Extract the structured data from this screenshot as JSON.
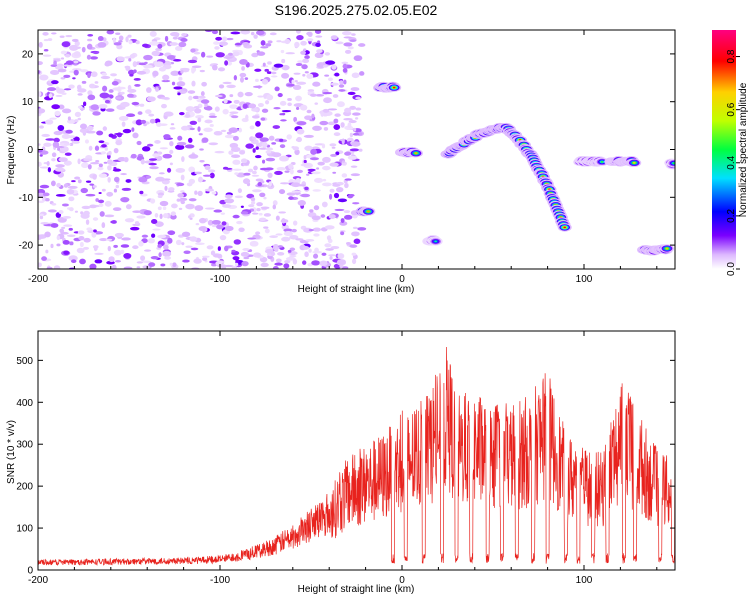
{
  "title": "S196.2025.275.02.05.E02",
  "chart_data": [
    {
      "type": "heatmap",
      "title": "",
      "xlabel": "Height of straight line (km)",
      "ylabel": "Frequency (Hz)",
      "xlim": [
        -200,
        150
      ],
      "ylim": [
        -25,
        25
      ],
      "xticks": [
        -200,
        -100,
        0,
        100
      ],
      "yticks": [
        -20,
        -10,
        0,
        10,
        20
      ],
      "xtick_labels": [
        "-200",
        "-100",
        "0",
        "100"
      ],
      "ytick_labels": [
        "-20",
        "-10",
        "0",
        "10",
        "20"
      ],
      "colorbar": {
        "label": "Normalized spectral amplitude",
        "range": [
          0,
          0.9
        ],
        "ticks": [
          0.0,
          0.2,
          0.4,
          0.6,
          0.8
        ],
        "tick_labels": [
          "0.0",
          "0.2",
          "0.4",
          "0.6",
          "0.8"
        ],
        "colormap": [
          "#ffffff",
          "#ddb8ff",
          "#7a00ff",
          "#0000ff",
          "#00e0ff",
          "#00ff40",
          "#c0ff00",
          "#ffd000",
          "#ff0000",
          "#ff0080"
        ]
      },
      "background_noise": {
        "x_range": [
          -200,
          -22
        ],
        "level": 0.12
      },
      "ridge_segments": [
        {
          "x_start": -22,
          "x_end": -18,
          "freq": -13,
          "amplitude": 0.85
        },
        {
          "x_start": -12,
          "x_end": -4,
          "freq": 13,
          "amplitude": 0.8
        },
        {
          "x_start": 0,
          "x_end": 8,
          "freq": -0.5,
          "amplitude": 0.75
        },
        {
          "x_start": 15,
          "x_end": 19,
          "freq": -19,
          "amplitude": 0.5
        },
        {
          "x_start": 25,
          "x_end": 90,
          "freq_start": -1,
          "freq_peak": 4.5,
          "x_peak": 57,
          "freq_end": -17,
          "amplitude": 0.85
        },
        {
          "x_start": 98,
          "x_end": 110,
          "freq": -2.5,
          "amplitude": 0.6
        },
        {
          "x_start": 115,
          "x_end": 128,
          "freq": -2.5,
          "amplitude": 0.75
        },
        {
          "x_start": 133,
          "x_end": 146,
          "freq": -21,
          "amplitude": 0.8
        },
        {
          "x_start": 148,
          "x_end": 150,
          "freq": -3,
          "amplitude": 0.5
        }
      ]
    },
    {
      "type": "line",
      "title": "",
      "xlabel": "Height of straight line (km)",
      "ylabel": "SNR (10 * v/v)",
      "xlim": [
        -200,
        150
      ],
      "ylim": [
        0,
        570
      ],
      "xticks": [
        -200,
        -100,
        0,
        100
      ],
      "yticks": [
        0,
        100,
        200,
        300,
        400,
        500
      ],
      "xtick_labels": [
        "-200",
        "-100",
        "0",
        "100"
      ],
      "ytick_labels": [
        "0",
        "100",
        "200",
        "300",
        "400",
        "500"
      ],
      "color": "#e8231e",
      "envelope": {
        "x": [
          -200,
          -150,
          -120,
          -100,
          -90,
          -80,
          -70,
          -60,
          -50,
          -40,
          -30,
          -20,
          -10,
          0,
          10,
          20,
          25,
          30,
          40,
          50,
          60,
          70,
          80,
          90,
          100,
          110,
          120,
          130,
          140,
          150
        ],
        "y": [
          25,
          28,
          30,
          35,
          45,
          60,
          80,
          110,
          150,
          190,
          270,
          300,
          330,
          380,
          400,
          480,
          540,
          420,
          430,
          400,
          400,
          420,
          480,
          330,
          300,
          280,
          460,
          380,
          290,
          260
        ]
      },
      "dropout_x": [
        -5,
        2,
        12,
        22,
        30,
        38,
        47,
        55,
        63,
        72,
        80,
        90,
        97,
        105,
        113,
        122,
        128,
        142,
        149
      ]
    }
  ]
}
